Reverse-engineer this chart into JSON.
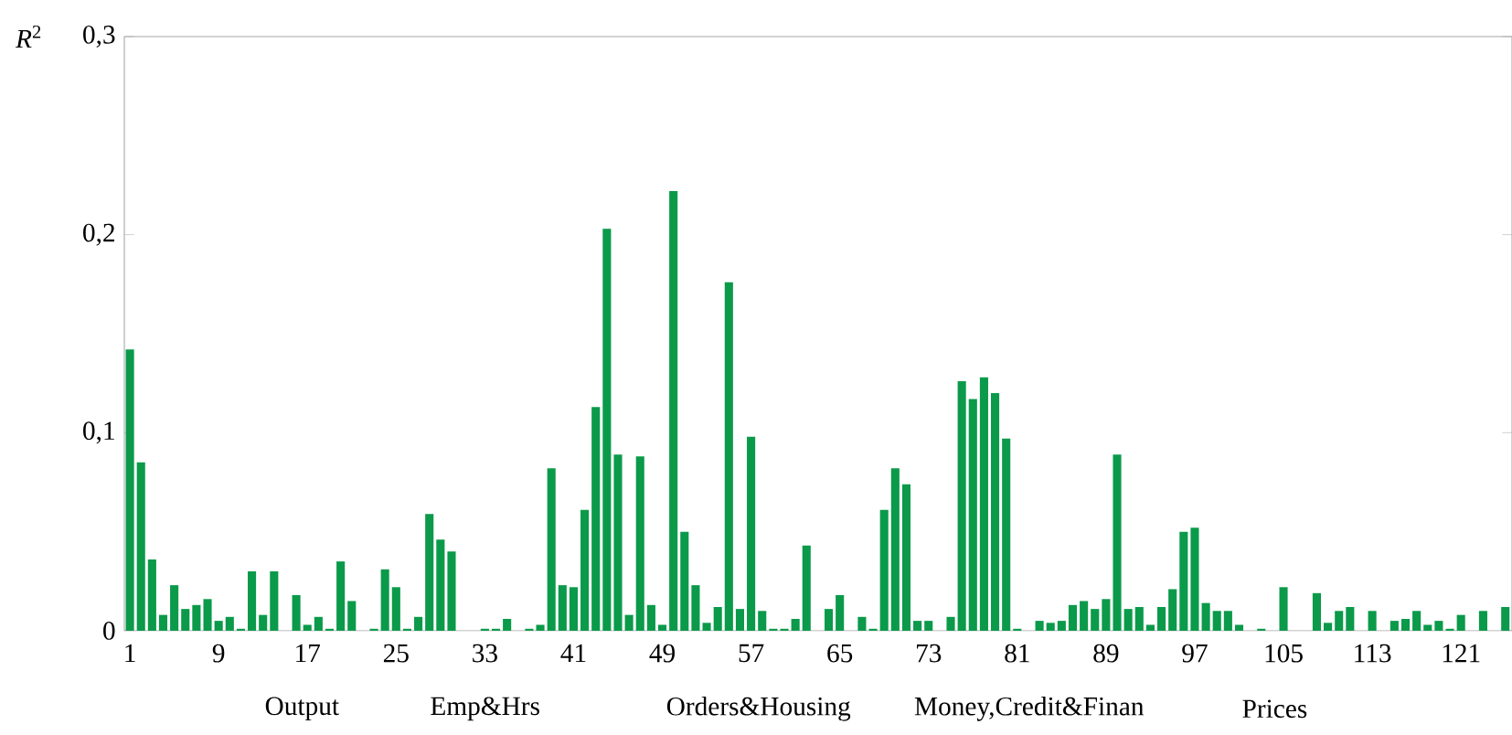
{
  "chart_data": {
    "type": "bar",
    "ylabel": "*R*$^{2}$",
    "color": "#0a9a4a",
    "x": [
      1,
      2,
      3,
      4,
      5,
      6,
      7,
      8,
      9,
      10,
      11,
      12,
      13,
      14,
      15,
      16,
      17,
      18,
      19,
      20,
      21,
      22,
      23,
      24,
      25,
      26,
      27,
      28,
      29,
      30,
      31,
      32,
      33,
      34,
      35,
      36,
      37,
      38,
      39,
      40,
      41,
      42,
      43,
      44,
      45,
      46,
      47,
      48,
      49,
      50,
      51,
      52,
      53,
      54,
      55,
      56,
      57,
      58,
      59,
      60,
      61,
      62,
      63,
      64,
      65,
      66,
      67,
      68,
      69,
      70,
      71,
      72,
      73,
      74,
      75,
      76,
      77,
      78,
      79,
      80,
      81,
      82,
      83,
      84,
      85,
      86,
      87,
      88,
      89,
      90,
      91,
      92,
      93,
      94,
      95,
      96,
      97,
      98,
      99,
      100,
      101,
      102,
      103,
      104,
      105,
      106,
      107,
      108,
      109,
      110,
      111,
      112,
      113,
      114,
      115,
      116,
      117,
      118,
      119,
      120,
      121,
      122,
      123,
      124,
      125
    ],
    "values": [
      0.142,
      0.085,
      0.036,
      0.008,
      0.023,
      0.011,
      0.013,
      0.016,
      0.005,
      0.007,
      0.001,
      0.03,
      0.008,
      0.03,
      0,
      0.018,
      0.003,
      0.007,
      0.001,
      0.035,
      0.015,
      0,
      0.001,
      0.031,
      0.022,
      0.001,
      0.007,
      0.059,
      0.046,
      0.04,
      0,
      0,
      0.001,
      0.001,
      0.006,
      0,
      0.001,
      0.003,
      0.082,
      0.023,
      0.022,
      0.061,
      0.113,
      0.203,
      0.089,
      0.008,
      0.088,
      0.013,
      0.003,
      0.222,
      0.05,
      0.023,
      0.004,
      0.012,
      0.176,
      0.011,
      0.098,
      0.01,
      0.001,
      0.001,
      0.006,
      0.043,
      0,
      0.011,
      0.018,
      0,
      0.007,
      0.001,
      0.061,
      0.082,
      0.074,
      0.005,
      0.005,
      0,
      0.007,
      0.126,
      0.117,
      0.128,
      0.12,
      0.097,
      0.001,
      0,
      0.005,
      0.004,
      0.005,
      0.013,
      0.015,
      0.011,
      0.016,
      0.089,
      0.011,
      0.012,
      0.003,
      0.012,
      0.021,
      0.05,
      0.052,
      0.014,
      0.01,
      0.01,
      0.003,
      0,
      0.001,
      0,
      0.022,
      0,
      0,
      0.019,
      0.004,
      0.01,
      0.012,
      0,
      0.01,
      0,
      0.005,
      0.006,
      0.01,
      0.003,
      0.005,
      0.001,
      0.008,
      0,
      0.01,
      0,
      0.012
    ],
    "xlim": [
      0.5,
      125.6
    ],
    "xticks": [
      1,
      9,
      17,
      25,
      33,
      41,
      49,
      57,
      65,
      73,
      81,
      89,
      97,
      105,
      113,
      121
    ],
    "ylim": [
      0,
      0.3
    ],
    "yticks": [
      0,
      {
        "value": 0.1,
        "label": "0,1"
      },
      {
        "value": 0.2,
        "label": "0,2"
      },
      {
        "value": 0.3,
        "label": "0,3"
      }
    ],
    "annotations": [
      "Output",
      "Emp&Hrs",
      "Orders&Housing",
      "Money,Credit&Finan",
      "Prices"
    ]
  }
}
